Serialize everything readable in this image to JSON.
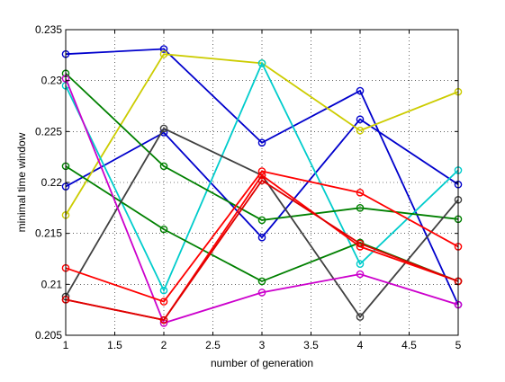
{
  "chart_data": {
    "type": "line",
    "title": "",
    "xlabel": "number of generation",
    "ylabel": "minimal time window",
    "x": [
      1,
      2,
      3,
      4,
      5
    ],
    "xlim": [
      1,
      5
    ],
    "ylim": [
      0.205,
      0.235
    ],
    "xticks": [
      "1",
      "1.5",
      "2",
      "2.5",
      "3",
      "3.5",
      "4",
      "4.5",
      "5"
    ],
    "yticks": [
      "0.205",
      "0.21",
      "0.215",
      "0.22",
      "0.225",
      "0.23",
      "0.235"
    ],
    "grid": true,
    "marker": "circle",
    "series": [
      {
        "color": "#0000cc",
        "values": [
          0.2326,
          0.2331,
          0.2239,
          0.229,
          0.208
        ]
      },
      {
        "color": "#0000cc",
        "values": [
          0.2196,
          0.2249,
          0.2146,
          0.2262,
          0.2198
        ]
      },
      {
        "color": "#cccc00",
        "values": [
          0.2168,
          0.2326,
          0.2317,
          0.2251,
          0.2289
        ]
      },
      {
        "color": "#00cccc",
        "values": [
          0.2295,
          0.2094,
          0.2317,
          0.212,
          0.2212
        ]
      },
      {
        "color": "#008000",
        "values": [
          0.2307,
          0.2216,
          0.2163,
          0.2175,
          0.2164
        ]
      },
      {
        "color": "#008000",
        "values": [
          0.2216,
          0.2154,
          0.2103,
          0.2141,
          0.2103
        ]
      },
      {
        "color": "#404040",
        "values": [
          0.2088,
          0.2253,
          0.2207,
          0.2068,
          0.2183
        ]
      },
      {
        "color": "#cc00cc",
        "values": [
          0.2302,
          0.2062,
          0.2092,
          0.211,
          0.208
        ]
      },
      {
        "color": "#ff0000",
        "values": [
          0.2116,
          0.2083,
          0.2211,
          0.219,
          0.2137
        ]
      },
      {
        "color": "#ff0000",
        "values": [
          0.2085,
          0.2065,
          0.2207,
          0.2137,
          0.2103
        ]
      },
      {
        "color": "#dd0000",
        "values": [
          0.2085,
          0.2065,
          0.2202,
          0.214,
          0.2103
        ]
      }
    ]
  }
}
